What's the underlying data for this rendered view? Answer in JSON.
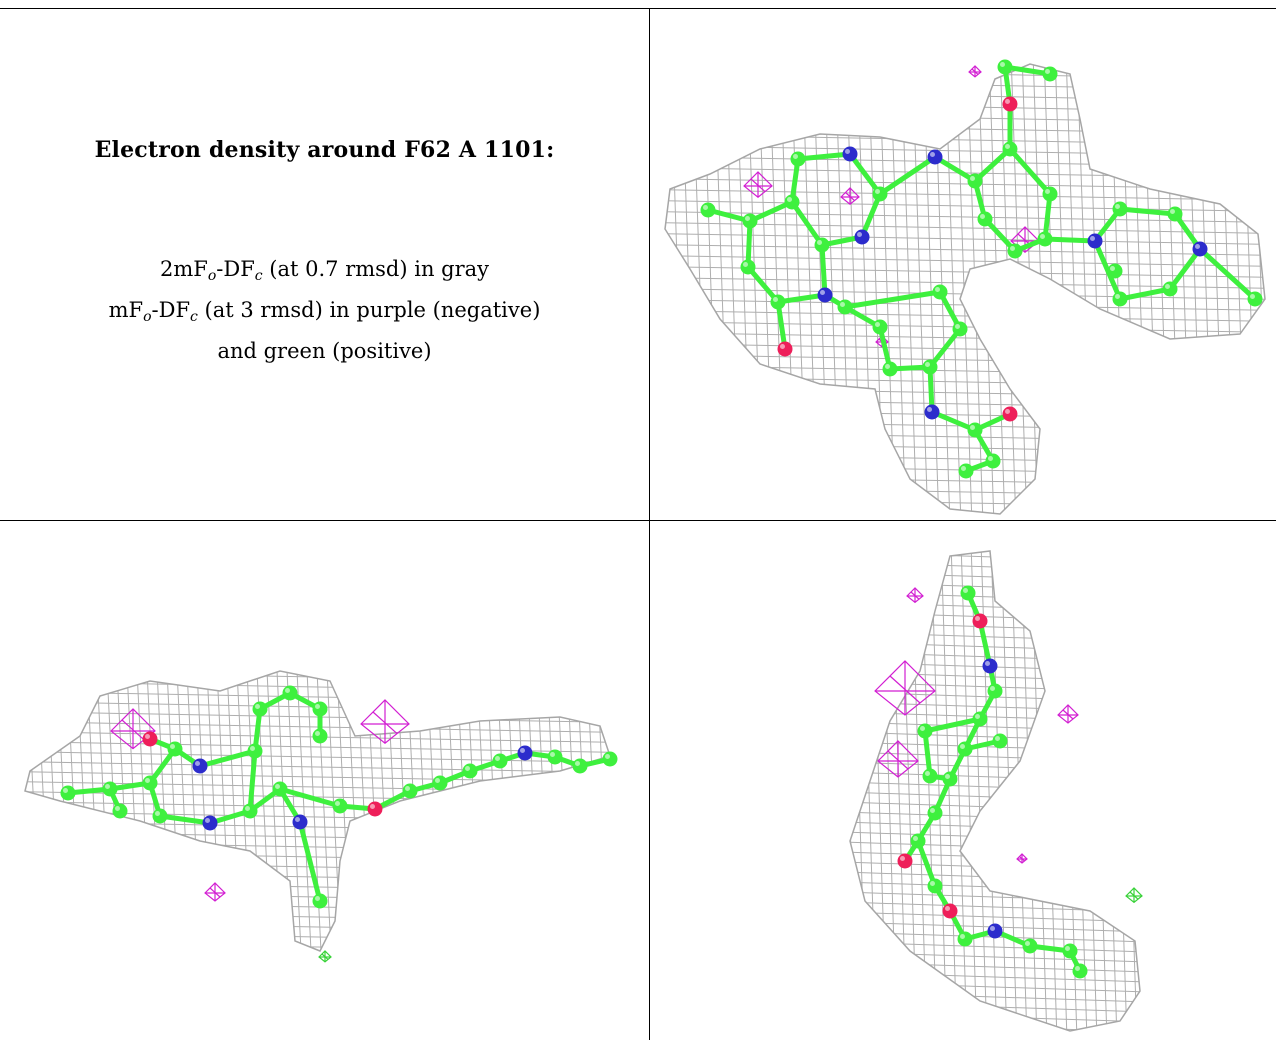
{
  "caption": {
    "title": "Electron density around F62 A 1101:",
    "line1": {
      "pre": "2mF",
      "sub1": "o",
      "mid": "-DF",
      "sub2": "c",
      "post": " (at 0.7 rmsd) in gray"
    },
    "line2": {
      "pre": "mF",
      "sub1": "o",
      "mid": "-DF",
      "sub2": "c",
      "post": " (at 3 rmsd) in purple (negative)"
    },
    "line3": "and green (positive)"
  },
  "colors": {
    "mesh_2fofc": "#a6a6a6",
    "mesh_negative": "#d21fd2",
    "mesh_positive": "#37d237",
    "carbon": "#3ef03e",
    "nitrogen": "#2c2ccc",
    "oxygen": "#ee1f5a",
    "grid_line": "#000000"
  },
  "views": [
    {
      "id": "top-view",
      "icon": "ligand-density-view-1"
    },
    {
      "id": "side-view",
      "icon": "ligand-density-view-2"
    },
    {
      "id": "end-view",
      "icon": "ligand-density-view-3"
    }
  ]
}
